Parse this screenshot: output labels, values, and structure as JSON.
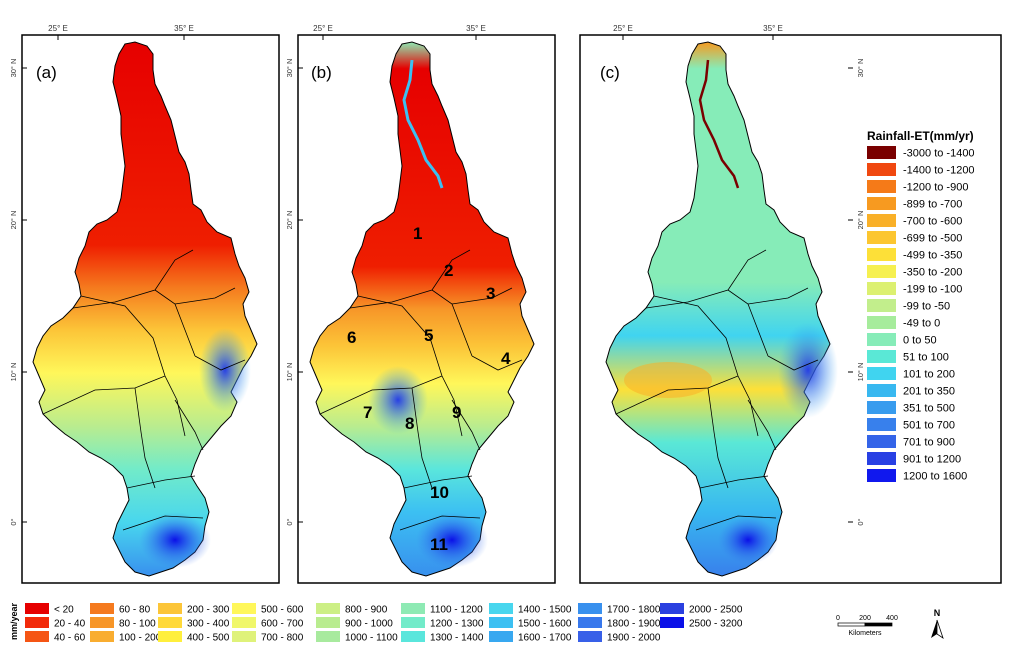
{
  "axes": {
    "lon_ticks": [
      "25° E",
      "35° E"
    ],
    "lat_ticks": [
      "30° N",
      "20° N",
      "10° N",
      "0°"
    ]
  },
  "panels": [
    {
      "label": "(a)"
    },
    {
      "label": "(b)"
    },
    {
      "label": "(c)"
    }
  ],
  "regions": [
    "1",
    "2",
    "3",
    "4",
    "5",
    "6",
    "7",
    "8",
    "9",
    "10",
    "11"
  ],
  "rainfall_legend": {
    "unit": "mm/year",
    "items": [
      {
        "label": "< 20",
        "color": "#e60000"
      },
      {
        "label": "20 - 40",
        "color": "#f22a0a"
      },
      {
        "label": "40 - 60",
        "color": "#f55514"
      },
      {
        "label": "60 - 80",
        "color": "#f57a1e"
      },
      {
        "label": "80 - 100",
        "color": "#f79628"
      },
      {
        "label": "100 - 200",
        "color": "#f9ad30"
      },
      {
        "label": "200 - 300",
        "color": "#fcc538"
      },
      {
        "label": "300 - 400",
        "color": "#ffd93a"
      },
      {
        "label": "400 - 500",
        "color": "#ffef3c"
      },
      {
        "label": "500 - 600",
        "color": "#fff75a"
      },
      {
        "label": "600 - 700",
        "color": "#f0f76a"
      },
      {
        "label": "700 - 800",
        "color": "#dff27a"
      },
      {
        "label": "800 - 900",
        "color": "#ccef85"
      },
      {
        "label": "900 - 1000",
        "color": "#b9ec8f"
      },
      {
        "label": "1000 - 1100",
        "color": "#a8ea9e"
      },
      {
        "label": "1100 - 1200",
        "color": "#8eeab4"
      },
      {
        "label": "1200 - 1300",
        "color": "#72ebc9"
      },
      {
        "label": "1300 - 1400",
        "color": "#5ae6dc"
      },
      {
        "label": "1400 - 1500",
        "color": "#48d6ee"
      },
      {
        "label": "1500 - 1600",
        "color": "#3cc0f2"
      },
      {
        "label": "1600 - 1700",
        "color": "#38a8f0"
      },
      {
        "label": "1700 - 1800",
        "color": "#3890ee"
      },
      {
        "label": "1800 - 1900",
        "color": "#3878ec"
      },
      {
        "label": "1900 - 2000",
        "color": "#3860e8"
      },
      {
        "label": "2000 - 2500",
        "color": "#2a40e0"
      },
      {
        "label": "2500 - 3200",
        "color": "#0a10e8"
      }
    ]
  },
  "diff_legend": {
    "title": "Rainfall-ET(mm/yr)",
    "items": [
      {
        "label": "-3000 to -1400",
        "color": "#7a0000"
      },
      {
        "label": "-1400 to -1200",
        "color": "#f04810"
      },
      {
        "label": "-1200 to -900",
        "color": "#f57a18"
      },
      {
        "label": "-899 to -700",
        "color": "#f79a20"
      },
      {
        "label": "-700 to -600",
        "color": "#f9b028"
      },
      {
        "label": "-699 to -500",
        "color": "#fcc630"
      },
      {
        "label": "-499 to -350",
        "color": "#fde038"
      },
      {
        "label": "-350 to -200",
        "color": "#f6f050"
      },
      {
        "label": "-199 to -100",
        "color": "#dcf070"
      },
      {
        "label": "-99 to -50",
        "color": "#c2ee8c"
      },
      {
        "label": "-49 to 0",
        "color": "#a6ec9c"
      },
      {
        "label": "0 to 50",
        "color": "#86ecb8"
      },
      {
        "label": "51 to 100",
        "color": "#5ae8d6"
      },
      {
        "label": "101 to 200",
        "color": "#40d4f0"
      },
      {
        "label": "201 to 350",
        "color": "#38b8f0"
      },
      {
        "label": "351 to 500",
        "color": "#389cee"
      },
      {
        "label": "501 to 700",
        "color": "#3880ec"
      },
      {
        "label": "701 to 900",
        "color": "#3464e8"
      },
      {
        "label": "901 to 1200",
        "color": "#2840e4"
      },
      {
        "label": "1200 to 1600",
        "color": "#1018ee"
      }
    ]
  },
  "scale_bar": {
    "ticks": [
      "0",
      "200",
      "400"
    ],
    "unit": "Kilometers"
  },
  "north_arrow": {
    "label": "N",
    "icon": "north-arrow-icon"
  }
}
